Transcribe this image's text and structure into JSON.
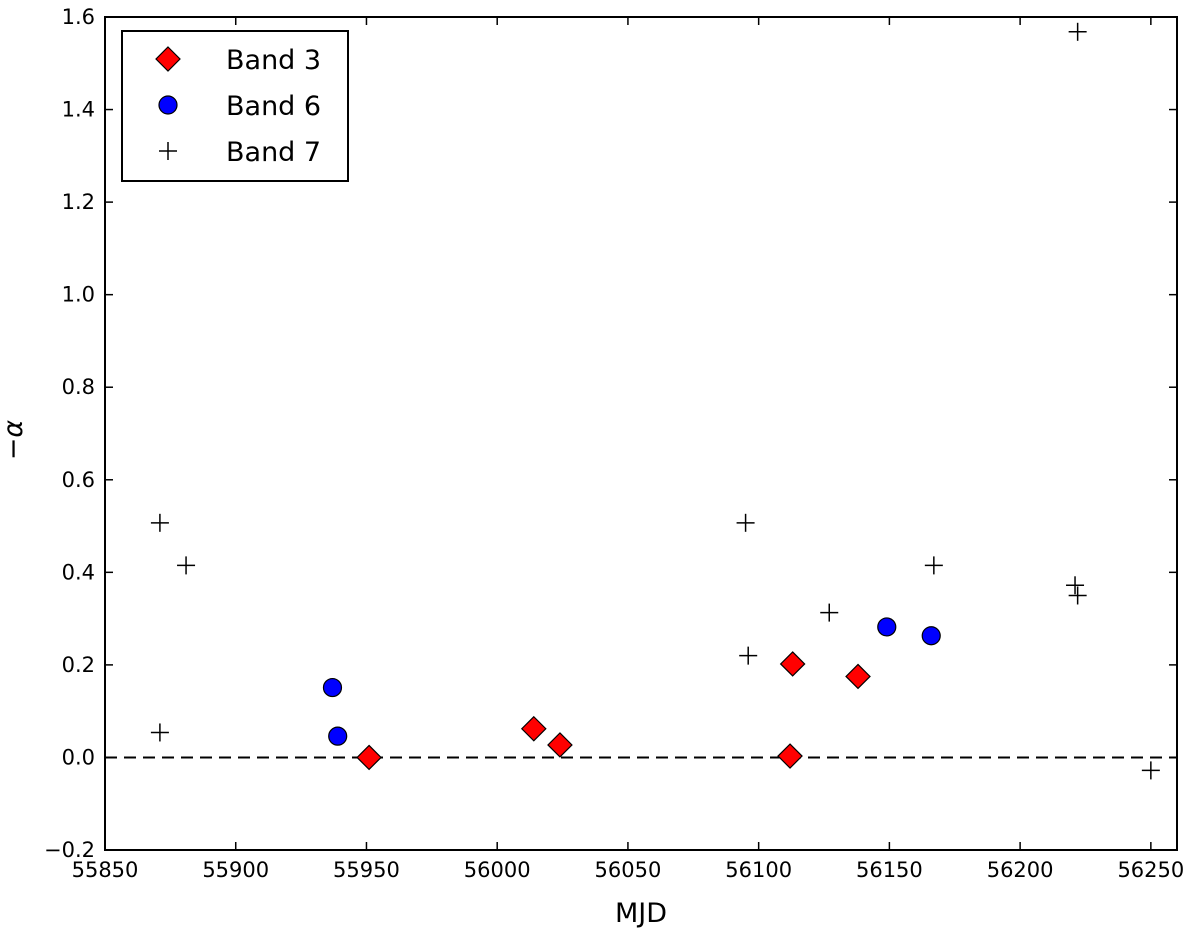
{
  "chart_data": {
    "type": "scatter",
    "title": "",
    "xlabel": "MJD",
    "ylabel": "−α",
    "xlim": [
      55850,
      56260
    ],
    "ylim": [
      -0.2,
      1.6
    ],
    "xticks": [
      55850,
      55900,
      55950,
      56000,
      56050,
      56100,
      56150,
      56200,
      56250
    ],
    "xtick_labels": [
      "55850",
      "55900",
      "55950",
      "56000",
      "56050",
      "56100",
      "56150",
      "56200",
      "56250"
    ],
    "yticks": [
      -0.2,
      0.0,
      0.2,
      0.4,
      0.6,
      0.8,
      1.0,
      1.2,
      1.4,
      1.6
    ],
    "ytick_labels": [
      "−0.2",
      "0.0",
      "0.2",
      "0.4",
      "0.6",
      "0.8",
      "1.0",
      "1.2",
      "1.4",
      "1.6"
    ],
    "grid": false,
    "legend_position": "top-left",
    "reference_line": {
      "y": 0.0,
      "style": "dashed",
      "color": "#000000"
    },
    "series": [
      {
        "name": "Band 3",
        "marker": "diamond",
        "color": "#ff0000",
        "x": [
          55951,
          56014,
          56024,
          56112,
          56113,
          56138
        ],
        "y": [
          0.0,
          0.062,
          0.027,
          0.003,
          0.202,
          0.175
        ]
      },
      {
        "name": "Band 6",
        "marker": "circle",
        "color": "#0000ff",
        "x": [
          55937,
          55939,
          56149,
          56166
        ],
        "y": [
          0.151,
          0.046,
          0.282,
          0.263
        ]
      },
      {
        "name": "Band 7",
        "marker": "plus",
        "color": "#000000",
        "x": [
          55871,
          55871,
          55881,
          56095,
          56096,
          56127,
          56167,
          56221,
          56222,
          56222,
          56250
        ],
        "y": [
          0.507,
          0.054,
          0.415,
          0.507,
          0.22,
          0.313,
          0.415,
          0.372,
          0.35,
          1.568,
          -0.028
        ]
      }
    ]
  }
}
